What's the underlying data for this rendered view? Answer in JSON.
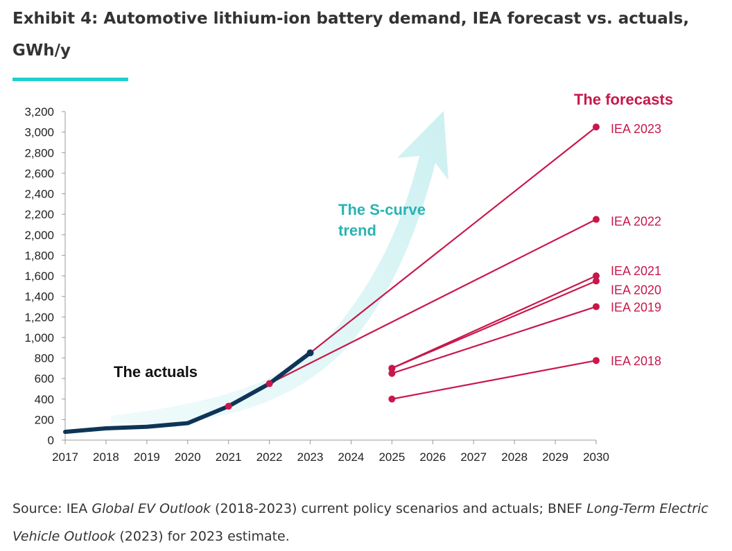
{
  "header": {
    "title": "Exhibit 4: Automotive lithium-ion battery demand, IEA forecast vs. actuals, GWh/y",
    "accent_color": "#1ecfcf"
  },
  "chart_data": {
    "type": "line",
    "title": "Exhibit 4: Automotive lithium-ion battery demand, IEA forecast vs. actuals, GWh/y",
    "xlabel": "",
    "ylabel": "GWh/y",
    "xlim": [
      2017,
      2030
    ],
    "ylim": [
      0,
      3200
    ],
    "x_ticks": [
      2017,
      2018,
      2019,
      2020,
      2021,
      2022,
      2023,
      2024,
      2025,
      2026,
      2027,
      2028,
      2029,
      2030
    ],
    "y_ticks": [
      0,
      200,
      400,
      600,
      800,
      1000,
      1200,
      1400,
      1600,
      1800,
      2000,
      2200,
      2400,
      2600,
      2800,
      3000,
      3200
    ],
    "y_tick_labels": [
      "0",
      "200",
      "400",
      "600",
      "800",
      "1,000",
      "1,200",
      "1,400",
      "1,600",
      "1,800",
      "2,000",
      "2,200",
      "2,400",
      "2,600",
      "2,800",
      "3,000",
      "3,200"
    ],
    "grid": false,
    "actuals": {
      "name": "The actuals",
      "color": "#0e3558",
      "x": [
        2017,
        2018,
        2019,
        2020,
        2021,
        2022,
        2023
      ],
      "y": [
        80,
        115,
        130,
        165,
        330,
        550,
        850
      ]
    },
    "forecasts_title": "The forecasts",
    "forecast_color": "#c8174b",
    "forecasts": [
      {
        "name": "IEA 2023",
        "x": [
          2023,
          2030
        ],
        "y": [
          850,
          3050
        ]
      },
      {
        "name": "IEA 2022",
        "x": [
          2022,
          2030
        ],
        "y": [
          550,
          2150
        ]
      },
      {
        "name": "IEA 2021",
        "x": [
          2025,
          2030
        ],
        "y": [
          700,
          1600
        ]
      },
      {
        "name": "IEA 2020",
        "x": [
          2025,
          2030
        ],
        "y": [
          700,
          1550
        ]
      },
      {
        "name": "IEA 2019",
        "x": [
          2025,
          2030
        ],
        "y": [
          650,
          1300
        ]
      },
      {
        "name": "IEA 2018",
        "x": [
          2025,
          2030
        ],
        "y": [
          400,
          775
        ]
      }
    ],
    "forecast_dots": [
      {
        "x": 2021,
        "y": 330
      }
    ],
    "annotations": {
      "s_curve_line1": "The S-curve",
      "s_curve_line2": "trend",
      "s_curve_color": "#2ab3b3",
      "actuals_label": "The actuals"
    }
  },
  "source": {
    "prefix": "Source: IEA ",
    "italic1": "Global EV Outlook",
    "mid": " (2018-2023) current policy scenarios and actuals; BNEF ",
    "italic2": "Long-Term Electric Vehicle Outlook",
    "suffix": " (2023) for 2023 estimate."
  }
}
